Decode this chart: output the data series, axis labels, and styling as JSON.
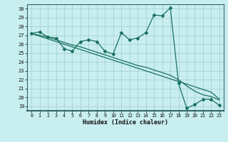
{
  "xlabel": "Humidex (Indice chaleur)",
  "bg_color": "#c8eef0",
  "grid_color": "#a0cccc",
  "line_color": "#1a7060",
  "xlim": [
    -0.5,
    23.5
  ],
  "ylim": [
    18.5,
    30.5
  ],
  "yticks": [
    19,
    20,
    21,
    22,
    23,
    24,
    25,
    26,
    27,
    28,
    29,
    30
  ],
  "xticks": [
    0,
    1,
    2,
    3,
    4,
    5,
    6,
    7,
    8,
    9,
    10,
    11,
    12,
    13,
    14,
    15,
    16,
    17,
    18,
    19,
    20,
    21,
    22,
    23
  ],
  "line1_y": [
    27.2,
    27.4,
    26.8,
    26.7,
    25.5,
    25.2,
    26.3,
    26.5,
    26.3,
    25.2,
    24.9,
    27.3,
    26.5,
    26.7,
    27.3,
    29.3,
    29.2,
    30.1,
    21.6,
    18.8,
    19.2,
    19.8,
    19.8,
    19.1
  ],
  "line2_y": [
    27.2,
    26.9,
    26.6,
    26.3,
    26.0,
    25.7,
    25.4,
    25.1,
    24.8,
    24.5,
    24.2,
    23.9,
    23.6,
    23.3,
    23.0,
    22.7,
    22.4,
    22.1,
    21.8,
    21.5,
    21.2,
    20.9,
    20.6,
    19.8
  ],
  "line3_y": [
    27.2,
    27.0,
    26.8,
    26.5,
    26.2,
    25.9,
    25.7,
    25.4,
    25.1,
    24.8,
    24.5,
    24.2,
    23.9,
    23.6,
    23.4,
    23.1,
    22.8,
    22.5,
    22.0,
    21.3,
    20.7,
    20.3,
    20.1,
    19.7
  ]
}
